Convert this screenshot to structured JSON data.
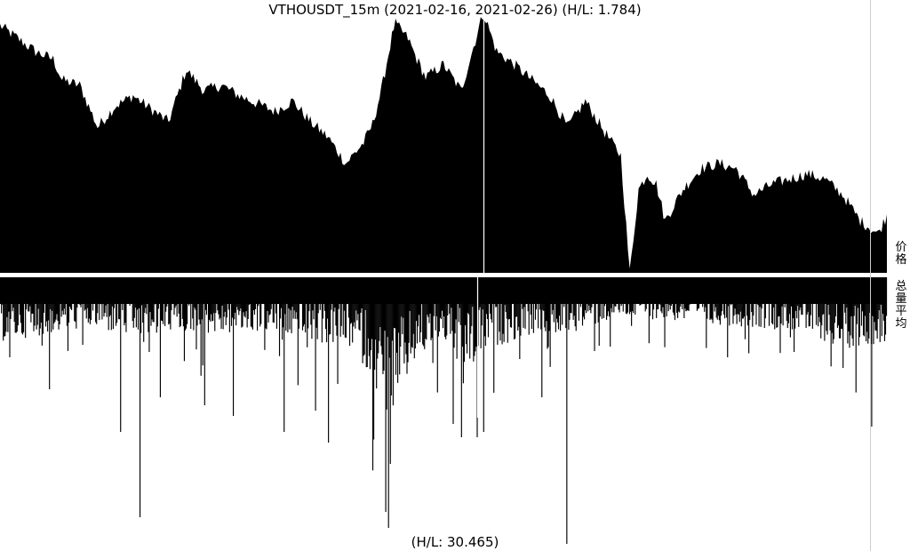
{
  "chart_title": "VTHOUSDT_15m (2021-02-16, 2021-02-26) (H/L: 1.784)",
  "volume_hl_text": "(H/L: 30.465)",
  "panel_labels": {
    "price": "价格",
    "volume": "总量平均"
  },
  "colors": {
    "fill": "#000000",
    "background": "#ffffff",
    "separator": "#ffffff",
    "right_axis_line": "#cccccc"
  },
  "chart_data": [
    {
      "type": "area",
      "panel": "price",
      "title": "VTHOUSDT_15m (2021-02-16, 2021-02-26) (H/L: 1.784)",
      "x_range": [
        "2021-02-16",
        "2021-02-26"
      ],
      "ylabel": "价格",
      "high_low_ratio": 1.784,
      "grid": false,
      "series_profile": [
        [
          0,
          0.95
        ],
        [
          0.02,
          0.9
        ],
        [
          0.04,
          0.85
        ],
        [
          0.06,
          0.82
        ],
        [
          0.07,
          0.74
        ],
        [
          0.09,
          0.72
        ],
        [
          0.11,
          0.56
        ],
        [
          0.13,
          0.64
        ],
        [
          0.15,
          0.68
        ],
        [
          0.17,
          0.63
        ],
        [
          0.19,
          0.58
        ],
        [
          0.21,
          0.78
        ],
        [
          0.23,
          0.7
        ],
        [
          0.25,
          0.72
        ],
        [
          0.27,
          0.68
        ],
        [
          0.29,
          0.65
        ],
        [
          0.31,
          0.62
        ],
        [
          0.33,
          0.66
        ],
        [
          0.35,
          0.58
        ],
        [
          0.37,
          0.52
        ],
        [
          0.39,
          0.42
        ],
        [
          0.41,
          0.5
        ],
        [
          0.42,
          0.57
        ],
        [
          0.43,
          0.7
        ],
        [
          0.445,
          0.96
        ],
        [
          0.46,
          0.9
        ],
        [
          0.47,
          0.82
        ],
        [
          0.48,
          0.75
        ],
        [
          0.5,
          0.8
        ],
        [
          0.52,
          0.7
        ],
        [
          0.53,
          0.82
        ],
        [
          0.545,
          1.0
        ],
        [
          0.56,
          0.85
        ],
        [
          0.58,
          0.8
        ],
        [
          0.6,
          0.74
        ],
        [
          0.62,
          0.68
        ],
        [
          0.64,
          0.56
        ],
        [
          0.66,
          0.66
        ],
        [
          0.68,
          0.55
        ],
        [
          0.7,
          0.45
        ],
        [
          0.71,
          0.0
        ],
        [
          0.72,
          0.32
        ],
        [
          0.73,
          0.38
        ],
        [
          0.74,
          0.34
        ],
        [
          0.75,
          0.2
        ],
        [
          0.77,
          0.32
        ],
        [
          0.79,
          0.4
        ],
        [
          0.81,
          0.42
        ],
        [
          0.83,
          0.4
        ],
        [
          0.85,
          0.3
        ],
        [
          0.87,
          0.34
        ],
        [
          0.89,
          0.36
        ],
        [
          0.91,
          0.38
        ],
        [
          0.93,
          0.36
        ],
        [
          0.95,
          0.3
        ],
        [
          0.97,
          0.2
        ],
        [
          0.99,
          0.15
        ],
        [
          1.0,
          0.22
        ]
      ]
    },
    {
      "type": "bar",
      "panel": "volume",
      "ylabel": "总量平均",
      "high_low_ratio": 30.465,
      "inverted": true,
      "grid": false,
      "base_profile": [
        [
          0,
          0.18
        ],
        [
          0.05,
          0.16
        ],
        [
          0.1,
          0.14
        ],
        [
          0.15,
          0.17
        ],
        [
          0.2,
          0.15
        ],
        [
          0.25,
          0.16
        ],
        [
          0.3,
          0.15
        ],
        [
          0.35,
          0.18
        ],
        [
          0.4,
          0.2
        ],
        [
          0.44,
          0.4
        ],
        [
          0.47,
          0.22
        ],
        [
          0.5,
          0.18
        ],
        [
          0.53,
          0.25
        ],
        [
          0.55,
          0.2
        ],
        [
          0.6,
          0.16
        ],
        [
          0.65,
          0.15
        ],
        [
          0.7,
          0.11
        ],
        [
          0.75,
          0.12
        ],
        [
          0.8,
          0.13
        ],
        [
          0.85,
          0.14
        ],
        [
          0.9,
          0.15
        ],
        [
          0.95,
          0.2
        ],
        [
          1.0,
          0.18
        ]
      ],
      "spikes": [
        [
          0.01,
          0.3
        ],
        [
          0.055,
          0.42
        ],
        [
          0.135,
          0.58
        ],
        [
          0.157,
          0.9
        ],
        [
          0.18,
          0.45
        ],
        [
          0.23,
          0.48
        ],
        [
          0.262,
          0.52
        ],
        [
          0.32,
          0.58
        ],
        [
          0.355,
          0.5
        ],
        [
          0.37,
          0.62
        ],
        [
          0.38,
          0.4
        ],
        [
          0.434,
          0.88
        ],
        [
          0.437,
          0.94
        ],
        [
          0.44,
          0.7
        ],
        [
          0.51,
          0.55
        ],
        [
          0.52,
          0.6
        ],
        [
          0.538,
          0.6
        ],
        [
          0.545,
          0.58
        ],
        [
          0.61,
          0.45
        ],
        [
          0.639,
          1.0
        ],
        [
          0.688,
          0.26
        ],
        [
          0.82,
          0.3
        ],
        [
          0.895,
          0.28
        ],
        [
          0.95,
          0.34
        ],
        [
          0.982,
          0.56
        ]
      ]
    }
  ]
}
